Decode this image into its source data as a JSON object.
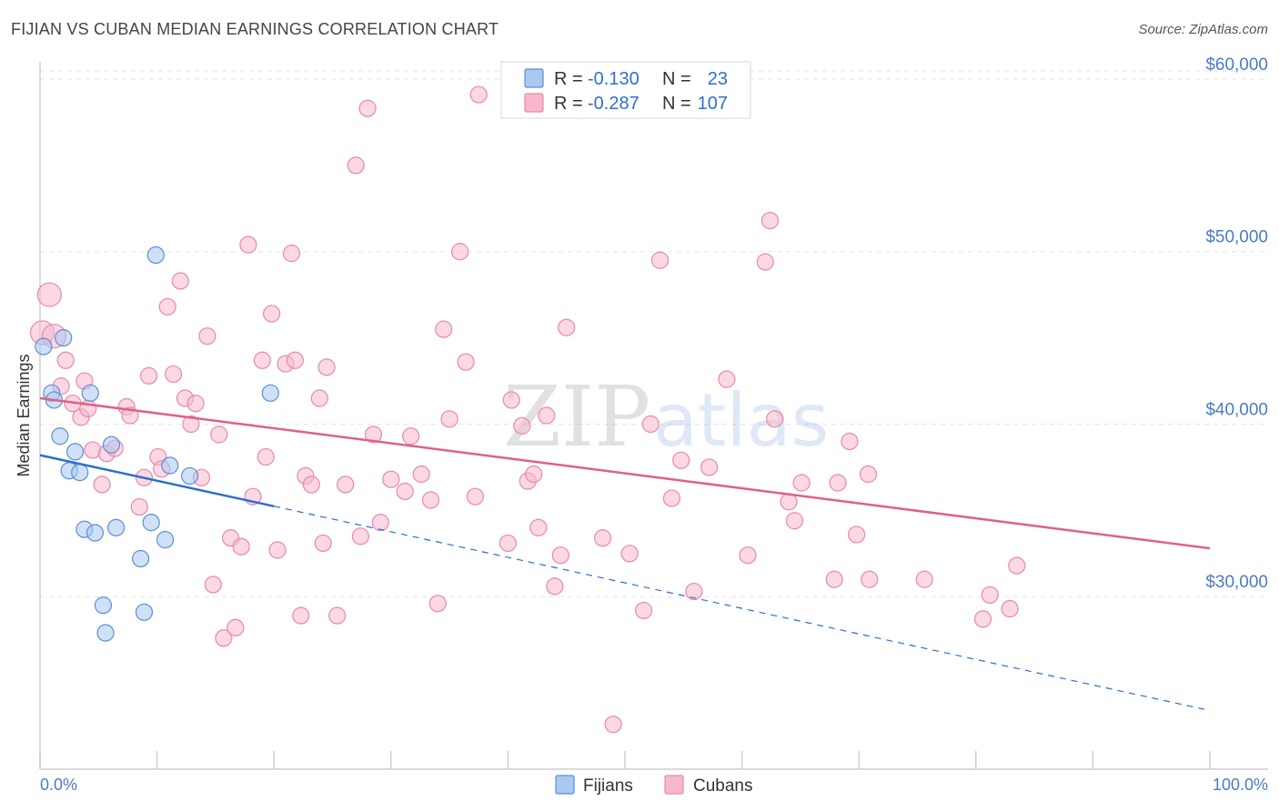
{
  "title": "FIJIAN VS CUBAN MEDIAN EARNINGS CORRELATION CHART",
  "source": "Source: ZipAtlas.com",
  "watermark": {
    "zip": "ZIP",
    "atlas": "atlas"
  },
  "legend_labels": {
    "r": "R =",
    "n": "N ="
  },
  "colors": {
    "fijians_fill": "#aac8f0",
    "fijians_stroke": "#5a8fd6",
    "fijians_line": "#2a6fce",
    "cubans_fill": "#f7b8cc",
    "cubans_stroke": "#e889a8",
    "cubans_line": "#e0608c",
    "tick_text": "#4a7cc4"
  },
  "chart_data": {
    "type": "scatter",
    "xlabel": "",
    "ylabel": "Median Earnings",
    "xlim": [
      0,
      100
    ],
    "ylim": [
      20000,
      61000
    ],
    "x_tick_labels": [
      "0.0%",
      "100.0%"
    ],
    "y_ticks": [
      {
        "value": 30000,
        "label": "$30,000"
      },
      {
        "value": 40000,
        "label": "$40,000"
      },
      {
        "value": 50000,
        "label": "$50,000"
      },
      {
        "value": 60000,
        "label": "$60,000"
      }
    ],
    "grid": true,
    "legend_position": "top-center",
    "series": [
      {
        "name": "Fijians",
        "r": "-0.130",
        "n": "23",
        "trend": {
          "x_start": 0,
          "y_start": 38200,
          "x_solid_end": 20,
          "x_end": 100,
          "y_end": 23400
        },
        "points": [
          [
            0.3,
            44500
          ],
          [
            1.0,
            41800
          ],
          [
            1.2,
            41400
          ],
          [
            1.7,
            39300
          ],
          [
            2.0,
            45000
          ],
          [
            2.5,
            37300
          ],
          [
            3.0,
            38400
          ],
          [
            3.4,
            37200
          ],
          [
            3.8,
            33900
          ],
          [
            4.3,
            41800
          ],
          [
            4.7,
            33700
          ],
          [
            5.4,
            29500
          ],
          [
            5.6,
            27900
          ],
          [
            6.1,
            38800
          ],
          [
            6.5,
            34000
          ],
          [
            8.6,
            32200
          ],
          [
            8.9,
            29100
          ],
          [
            9.5,
            34300
          ],
          [
            9.9,
            49800
          ],
          [
            10.7,
            33300
          ],
          [
            11.1,
            37600
          ],
          [
            12.8,
            37000
          ],
          [
            19.7,
            41800
          ]
        ]
      },
      {
        "name": "Cubans",
        "r": "-0.287",
        "n": "107",
        "trend": {
          "x_start": 0,
          "y_start": 41500,
          "x_end": 100,
          "y_end": 32800
        },
        "points": [
          [
            0.2,
            45300
          ],
          [
            0.8,
            47500
          ],
          [
            1.2,
            45100
          ],
          [
            1.8,
            42200
          ],
          [
            2.2,
            43700
          ],
          [
            2.8,
            41200
          ],
          [
            3.5,
            40400
          ],
          [
            3.8,
            42500
          ],
          [
            4.1,
            40900
          ],
          [
            4.5,
            38500
          ],
          [
            5.3,
            36500
          ],
          [
            5.7,
            38300
          ],
          [
            6.4,
            38600
          ],
          [
            7.4,
            41000
          ],
          [
            7.7,
            40500
          ],
          [
            8.5,
            35200
          ],
          [
            8.9,
            36900
          ],
          [
            9.3,
            42800
          ],
          [
            10.1,
            38100
          ],
          [
            10.4,
            37400
          ],
          [
            10.9,
            46800
          ],
          [
            11.4,
            42900
          ],
          [
            12.0,
            48300
          ],
          [
            12.4,
            41500
          ],
          [
            12.9,
            40000
          ],
          [
            13.3,
            41200
          ],
          [
            13.8,
            36900
          ],
          [
            14.3,
            45100
          ],
          [
            14.8,
            30700
          ],
          [
            15.3,
            39400
          ],
          [
            15.7,
            27600
          ],
          [
            16.3,
            33400
          ],
          [
            16.7,
            28200
          ],
          [
            17.2,
            32900
          ],
          [
            17.8,
            50400
          ],
          [
            18.2,
            35800
          ],
          [
            19.0,
            43700
          ],
          [
            19.3,
            38100
          ],
          [
            19.8,
            46400
          ],
          [
            20.3,
            32700
          ],
          [
            21.0,
            43500
          ],
          [
            21.5,
            49900
          ],
          [
            21.8,
            43700
          ],
          [
            22.3,
            28900
          ],
          [
            22.7,
            37000
          ],
          [
            23.2,
            36500
          ],
          [
            23.9,
            41500
          ],
          [
            24.2,
            33100
          ],
          [
            24.5,
            43300
          ],
          [
            25.4,
            28900
          ],
          [
            26.1,
            36500
          ],
          [
            27.0,
            55000
          ],
          [
            27.4,
            33500
          ],
          [
            28.0,
            58300
          ],
          [
            28.5,
            39400
          ],
          [
            29.1,
            34300
          ],
          [
            30.0,
            36800
          ],
          [
            31.2,
            36100
          ],
          [
            31.7,
            39300
          ],
          [
            32.6,
            37100
          ],
          [
            33.4,
            35600
          ],
          [
            34.0,
            29600
          ],
          [
            34.5,
            45500
          ],
          [
            35.0,
            40300
          ],
          [
            35.9,
            50000
          ],
          [
            36.4,
            43600
          ],
          [
            37.2,
            35800
          ],
          [
            37.5,
            59100
          ],
          [
            40.0,
            33100
          ],
          [
            40.3,
            41400
          ],
          [
            41.2,
            39900
          ],
          [
            41.7,
            36700
          ],
          [
            42.2,
            37100
          ],
          [
            42.6,
            34000
          ],
          [
            43.3,
            40500
          ],
          [
            44.0,
            30600
          ],
          [
            44.5,
            32400
          ],
          [
            45.0,
            45600
          ],
          [
            48.1,
            33400
          ],
          [
            49.0,
            22600
          ],
          [
            50.4,
            32500
          ],
          [
            51.6,
            29200
          ],
          [
            52.2,
            40000
          ],
          [
            53.0,
            49500
          ],
          [
            54.0,
            35700
          ],
          [
            54.8,
            37900
          ],
          [
            55.9,
            30300
          ],
          [
            57.2,
            37500
          ],
          [
            58.7,
            42600
          ],
          [
            60.5,
            32400
          ],
          [
            62.0,
            49400
          ],
          [
            62.4,
            51800
          ],
          [
            62.8,
            40300
          ],
          [
            64.0,
            35500
          ],
          [
            64.5,
            34400
          ],
          [
            65.1,
            36600
          ],
          [
            67.9,
            31000
          ],
          [
            68.2,
            36600
          ],
          [
            69.2,
            39000
          ],
          [
            69.8,
            33600
          ],
          [
            70.9,
            31000
          ],
          [
            70.8,
            37100
          ],
          [
            75.6,
            31000
          ],
          [
            80.6,
            28700
          ],
          [
            81.2,
            30100
          ],
          [
            82.9,
            29300
          ],
          [
            83.5,
            31800
          ]
        ]
      }
    ]
  }
}
